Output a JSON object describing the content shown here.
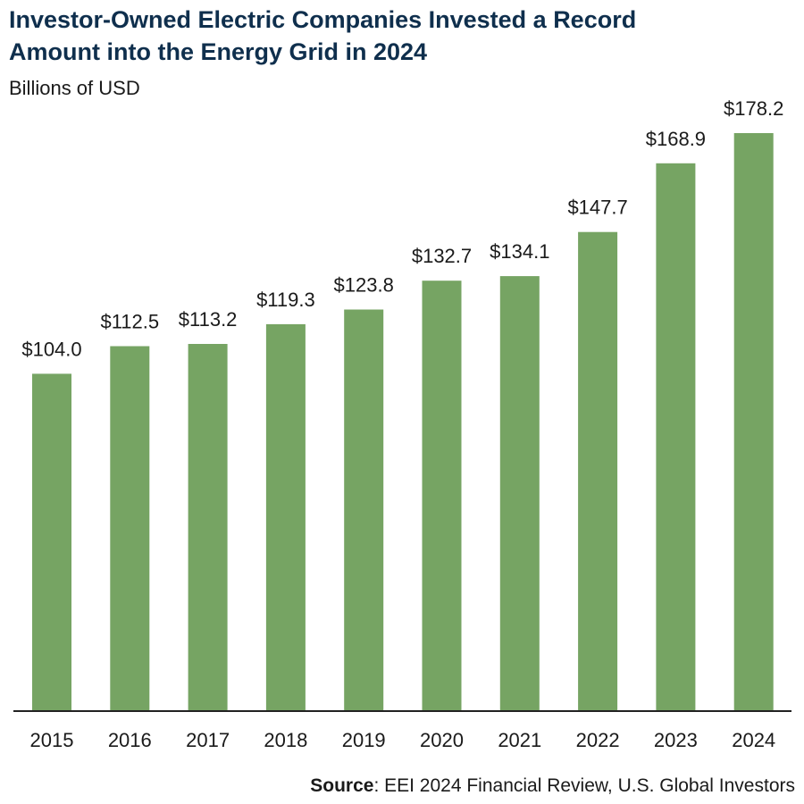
{
  "chart_data": {
    "type": "bar",
    "title_line1": "Investor-Owned Electric Companies Invested a Record",
    "title_line2": "Amount into the Energy Grid in 2024",
    "subtitle": "Billions of USD",
    "categories": [
      "2015",
      "2016",
      "2017",
      "2018",
      "2019",
      "2020",
      "2021",
      "2022",
      "2023",
      "2024"
    ],
    "values": [
      104.0,
      112.5,
      113.2,
      119.3,
      123.8,
      132.7,
      134.1,
      147.7,
      168.9,
      178.2
    ],
    "value_labels": [
      "$104.0",
      "$112.5",
      "$113.2",
      "$119.3",
      "$123.8",
      "$132.7",
      "$134.1",
      "$147.7",
      "$168.9",
      "$178.2"
    ],
    "ylim": [
      0,
      178.2
    ],
    "bar_color": "#76a463",
    "axis_color": "#222222"
  },
  "source": {
    "label": "Source",
    "text": ": EEI 2024 Financial Review, U.S. Global Investors"
  }
}
